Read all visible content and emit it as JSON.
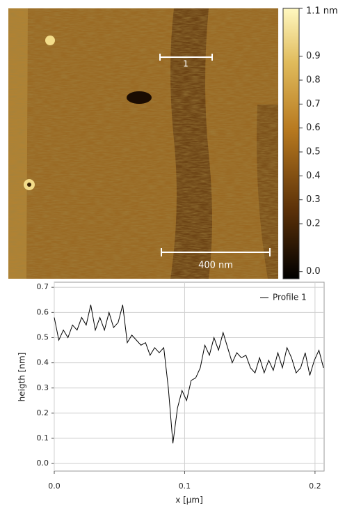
{
  "image": {
    "scale_bar_label": "1",
    "scale_label": "400 nm"
  },
  "colorbar": {
    "lim": [
      -0.03,
      1.1
    ],
    "ticks": [
      {
        "value": 0,
        "label": "0.0"
      },
      0.2,
      0.3,
      0.4,
      0.5,
      0.6,
      0.7,
      0.8,
      0.9,
      {
        "value": 1.1,
        "label": "1.1 nm"
      }
    ]
  },
  "chart_data": {
    "type": "line",
    "xlabel": "x [µm]",
    "ylabel": "heigth [nm]",
    "x": [
      0,
      0.0035,
      0.007,
      0.0105,
      0.014,
      0.0175,
      0.021,
      0.0245,
      0.028,
      0.0315,
      0.035,
      0.0385,
      0.042,
      0.0455,
      0.049,
      0.0525,
      0.056,
      0.0595,
      0.063,
      0.0665,
      0.07,
      0.0735,
      0.077,
      0.0805,
      0.084,
      0.0875,
      0.091,
      0.0945,
      0.098,
      0.1015,
      0.105,
      0.1085,
      0.112,
      0.1155,
      0.119,
      0.1225,
      0.126,
      0.1295,
      0.133,
      0.1365,
      0.14,
      0.1435,
      0.147,
      0.1505,
      0.154,
      0.1575,
      0.161,
      0.1645,
      0.168,
      0.1715,
      0.175,
      0.1785,
      0.182,
      0.1855,
      0.189,
      0.1925,
      0.196,
      0.1995,
      0.203,
      0.2065
    ],
    "series": [
      {
        "name": "Profile 1",
        "color": "#000000",
        "values": [
          0.58,
          0.49,
          0.53,
          0.5,
          0.55,
          0.53,
          0.58,
          0.55,
          0.63,
          0.53,
          0.58,
          0.53,
          0.6,
          0.54,
          0.56,
          0.63,
          0.48,
          0.51,
          0.49,
          0.47,
          0.48,
          0.43,
          0.46,
          0.44,
          0.46,
          0.3,
          0.08,
          0.22,
          0.29,
          0.25,
          0.33,
          0.34,
          0.38,
          0.47,
          0.43,
          0.5,
          0.45,
          0.52,
          0.46,
          0.4,
          0.44,
          0.42,
          0.43,
          0.38,
          0.36,
          0.42,
          0.36,
          0.41,
          0.37,
          0.44,
          0.38,
          0.46,
          0.42,
          0.36,
          0.38,
          0.44,
          0.35,
          0.41,
          0.45,
          0.38
        ]
      }
    ],
    "xlim": [
      0,
      0.207
    ],
    "xticks": [
      {
        "value": 0,
        "label": "0.0"
      },
      0.1,
      0.2
    ],
    "ylim": [
      -0.03,
      0.72
    ],
    "yticks": [
      {
        "value": 0,
        "label": "0.0"
      },
      0.1,
      0.2,
      0.3,
      0.4,
      0.5,
      0.6,
      0.7
    ],
    "grid": true,
    "legend": "upper right"
  }
}
